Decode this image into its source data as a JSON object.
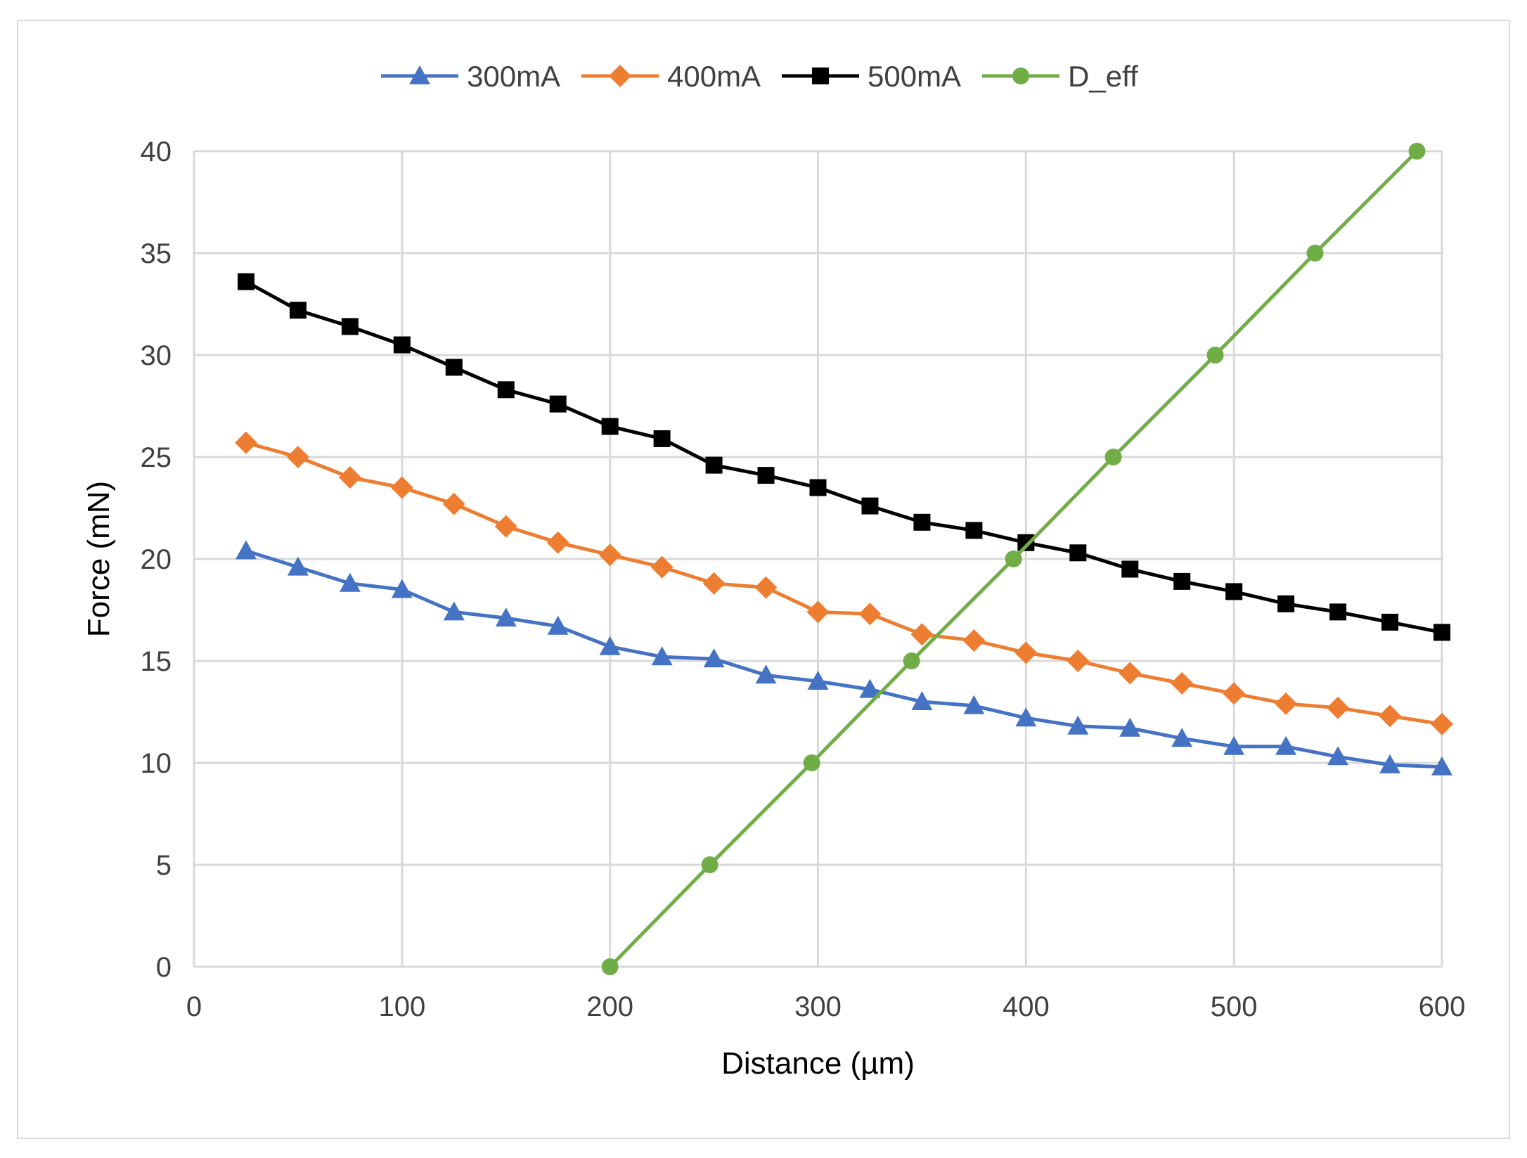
{
  "chart_data": {
    "type": "line",
    "title": "",
    "xlabel": "Distance (µm)",
    "ylabel": "Force (mN)",
    "xlim": [
      0,
      600
    ],
    "ylim": [
      0,
      40
    ],
    "xticks": [
      0,
      100,
      200,
      300,
      400,
      500,
      600
    ],
    "yticks": [
      0,
      5,
      10,
      15,
      20,
      25,
      30,
      35,
      40
    ],
    "grid": true,
    "legend_position": "top",
    "series": [
      {
        "name": "300mA",
        "color": "#4472c4",
        "marker": "triangle",
        "x": [
          25,
          50,
          75,
          100,
          125,
          150,
          175,
          200,
          225,
          250,
          275,
          300,
          325,
          350,
          375,
          400,
          425,
          450,
          475,
          500,
          525,
          550,
          575,
          600
        ],
        "y": [
          20.4,
          19.6,
          18.8,
          18.5,
          17.4,
          17.1,
          16.7,
          15.7,
          15.2,
          15.1,
          14.3,
          14.0,
          13.6,
          13.0,
          12.8,
          12.2,
          11.8,
          11.7,
          11.2,
          10.8,
          10.8,
          10.3,
          9.9,
          9.8
        ]
      },
      {
        "name": "400mA",
        "color": "#ed7d31",
        "marker": "diamond",
        "x": [
          25,
          50,
          75,
          100,
          125,
          150,
          175,
          200,
          225,
          250,
          275,
          300,
          325,
          350,
          375,
          400,
          425,
          450,
          475,
          500,
          525,
          550,
          575,
          600
        ],
        "y": [
          25.7,
          25.0,
          24.0,
          23.5,
          22.7,
          21.6,
          20.8,
          20.2,
          19.6,
          18.8,
          18.6,
          17.4,
          17.3,
          16.3,
          16.0,
          15.4,
          15.0,
          14.4,
          13.9,
          13.4,
          12.9,
          12.7,
          12.3,
          11.9
        ]
      },
      {
        "name": "500mA",
        "color": "#000000",
        "marker": "square",
        "x": [
          25,
          50,
          75,
          100,
          125,
          150,
          175,
          200,
          225,
          250,
          275,
          300,
          325,
          350,
          375,
          400,
          425,
          450,
          475,
          500,
          525,
          550,
          575,
          600
        ],
        "y": [
          33.6,
          32.2,
          31.4,
          30.5,
          29.4,
          28.3,
          27.6,
          26.5,
          25.9,
          24.6,
          24.1,
          23.5,
          22.6,
          21.8,
          21.4,
          20.8,
          20.3,
          19.5,
          18.9,
          18.4,
          17.8,
          17.4,
          16.9,
          16.4
        ]
      },
      {
        "name": "D_eff",
        "color": "#70ad47",
        "marker": "circle",
        "x": [
          200,
          248,
          297,
          345,
          394,
          442,
          491,
          539,
          588
        ],
        "y": [
          0,
          5,
          10,
          15,
          20,
          25,
          30,
          35,
          40
        ]
      }
    ]
  }
}
